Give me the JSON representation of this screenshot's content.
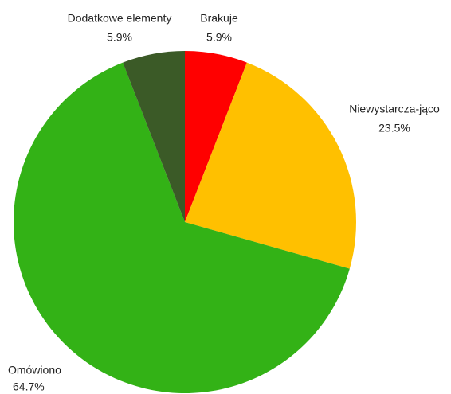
{
  "chart_data": {
    "type": "pie",
    "categories": [
      "Brakuje",
      "Niewystarcza-jąco",
      "Omówiono",
      "Dodatkowe elementy"
    ],
    "values": [
      5.9,
      23.5,
      64.7,
      5.9
    ],
    "value_labels": [
      "5.9%",
      "23.5%",
      "64.7%",
      "5.9%"
    ],
    "colors": [
      "#ff0000",
      "#ffc000",
      "#33b216",
      "#3b5a27"
    ]
  }
}
